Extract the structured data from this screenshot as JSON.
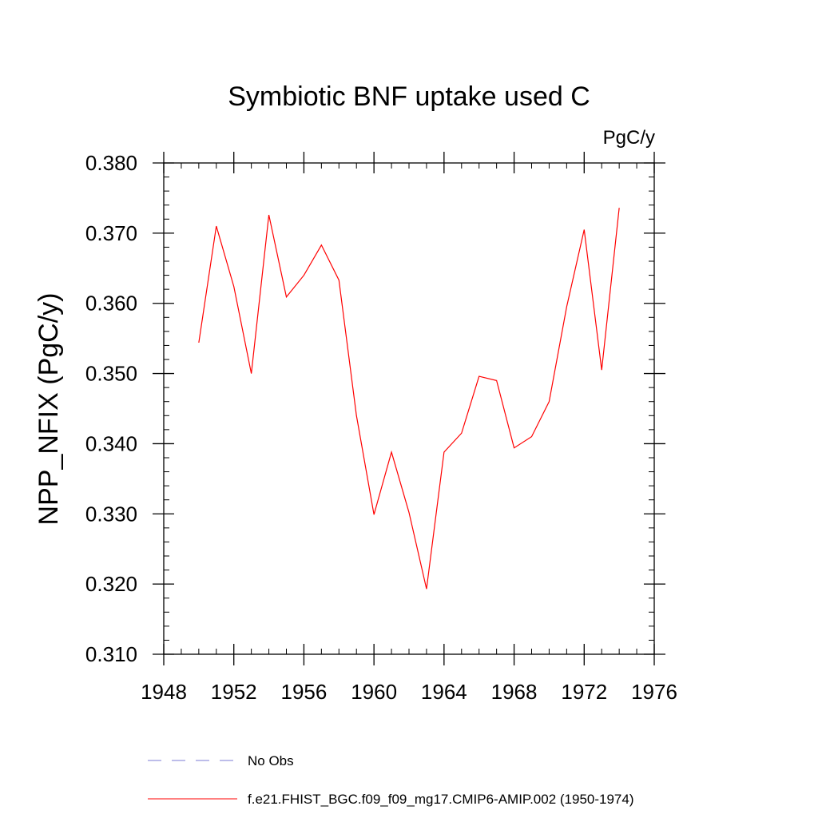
{
  "chart_data": {
    "type": "line",
    "title": "Symbiotic BNF uptake used C",
    "units_label": "PgC/y",
    "xlabel": "",
    "ylabel": "NPP_NFIX  (PgC/y)",
    "xlim": [
      1948,
      1976
    ],
    "ylim": [
      0.31,
      0.38
    ],
    "x_major_ticks": [
      1948,
      1952,
      1956,
      1960,
      1964,
      1968,
      1972,
      1976
    ],
    "x_minor_step": 1,
    "y_major_ticks": [
      0.31,
      0.32,
      0.33,
      0.34,
      0.35,
      0.36,
      0.37,
      0.38
    ],
    "y_tick_labels": [
      "0.310",
      "0.320",
      "0.330",
      "0.340",
      "0.350",
      "0.360",
      "0.370",
      "0.380"
    ],
    "y_minor_step": 0.002,
    "grid": false,
    "series": [
      {
        "name": "f.e21.FHIST_BGC.f09_f09_mg17.CMIP6-AMIP.002 (1950-1974)",
        "color": "#ff0000",
        "dash": "solid",
        "x": [
          1950,
          1951,
          1952,
          1953,
          1954,
          1955,
          1956,
          1957,
          1958,
          1959,
          1960,
          1961,
          1962,
          1963,
          1964,
          1965,
          1966,
          1967,
          1968,
          1969,
          1970,
          1971,
          1972,
          1973,
          1974
        ],
        "values": [
          0.3544,
          0.371,
          0.3624,
          0.35,
          0.3726,
          0.3609,
          0.364,
          0.3683,
          0.3633,
          0.344,
          0.3299,
          0.3388,
          0.3302,
          0.3193,
          0.3388,
          0.3415,
          0.3496,
          0.349,
          0.3394,
          0.341,
          0.346,
          0.3595,
          0.3705,
          0.3505,
          0.3736
        ]
      }
    ],
    "legend": {
      "placement": "bottom",
      "entries": [
        {
          "label": "No Obs",
          "color": "#7b7bd6",
          "dash": "dashed"
        },
        {
          "label": "f.e21.FHIST_BGC.f09_f09_mg17.CMIP6-AMIP.002 (1950-1974)",
          "color": "#ff0000",
          "dash": "solid"
        }
      ]
    }
  }
}
